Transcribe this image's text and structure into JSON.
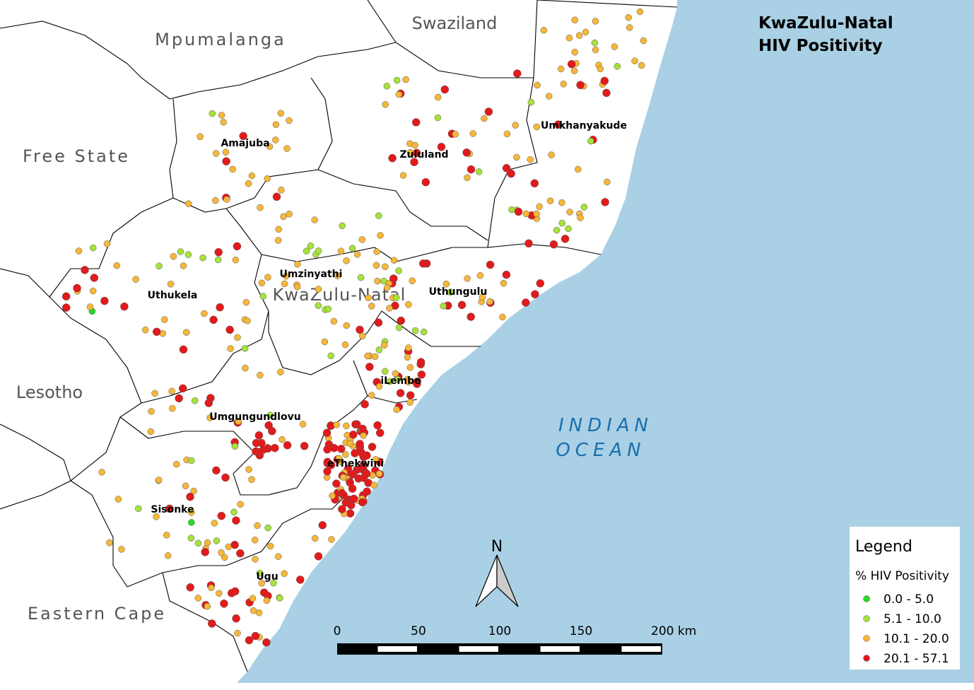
{
  "title": [
    "KwaZulu-Natal",
    "HIV Positivity"
  ],
  "regions": [
    "Mpumalanga",
    "Swaziland",
    "Free State",
    "Lesotho",
    "Eastern Cape"
  ],
  "province": "KwaZulu-Natal",
  "districts": [
    "Amajuba",
    "Zululand",
    "Umkhanyakude",
    "Umzinyathi",
    "Uthukela",
    "Uthungulu",
    "iLembe",
    "Umgungundlovu",
    "eThekwini",
    "Sisonke",
    "Ugu"
  ],
  "ocean": [
    "INDIAN",
    "OCEAN"
  ],
  "legend": {
    "title": "Legend",
    "subtitle": "% HIV Positivity",
    "classes": [
      {
        "label": "0.0 - 5.0",
        "color": "#22dd22"
      },
      {
        "label": "5.1 - 10.0",
        "color": "#a6e23a"
      },
      {
        "label": "10.1 - 20.0",
        "color": "#f7b738"
      },
      {
        "label": "20.1 - 57.1",
        "color": "#e31a1c"
      }
    ]
  },
  "north": "N",
  "scale_bar": {
    "xlim": [
      0,
      200
    ],
    "ticks": [
      0,
      50,
      100,
      150,
      {
        "value": 200,
        "label": "200 km"
      }
    ]
  }
}
